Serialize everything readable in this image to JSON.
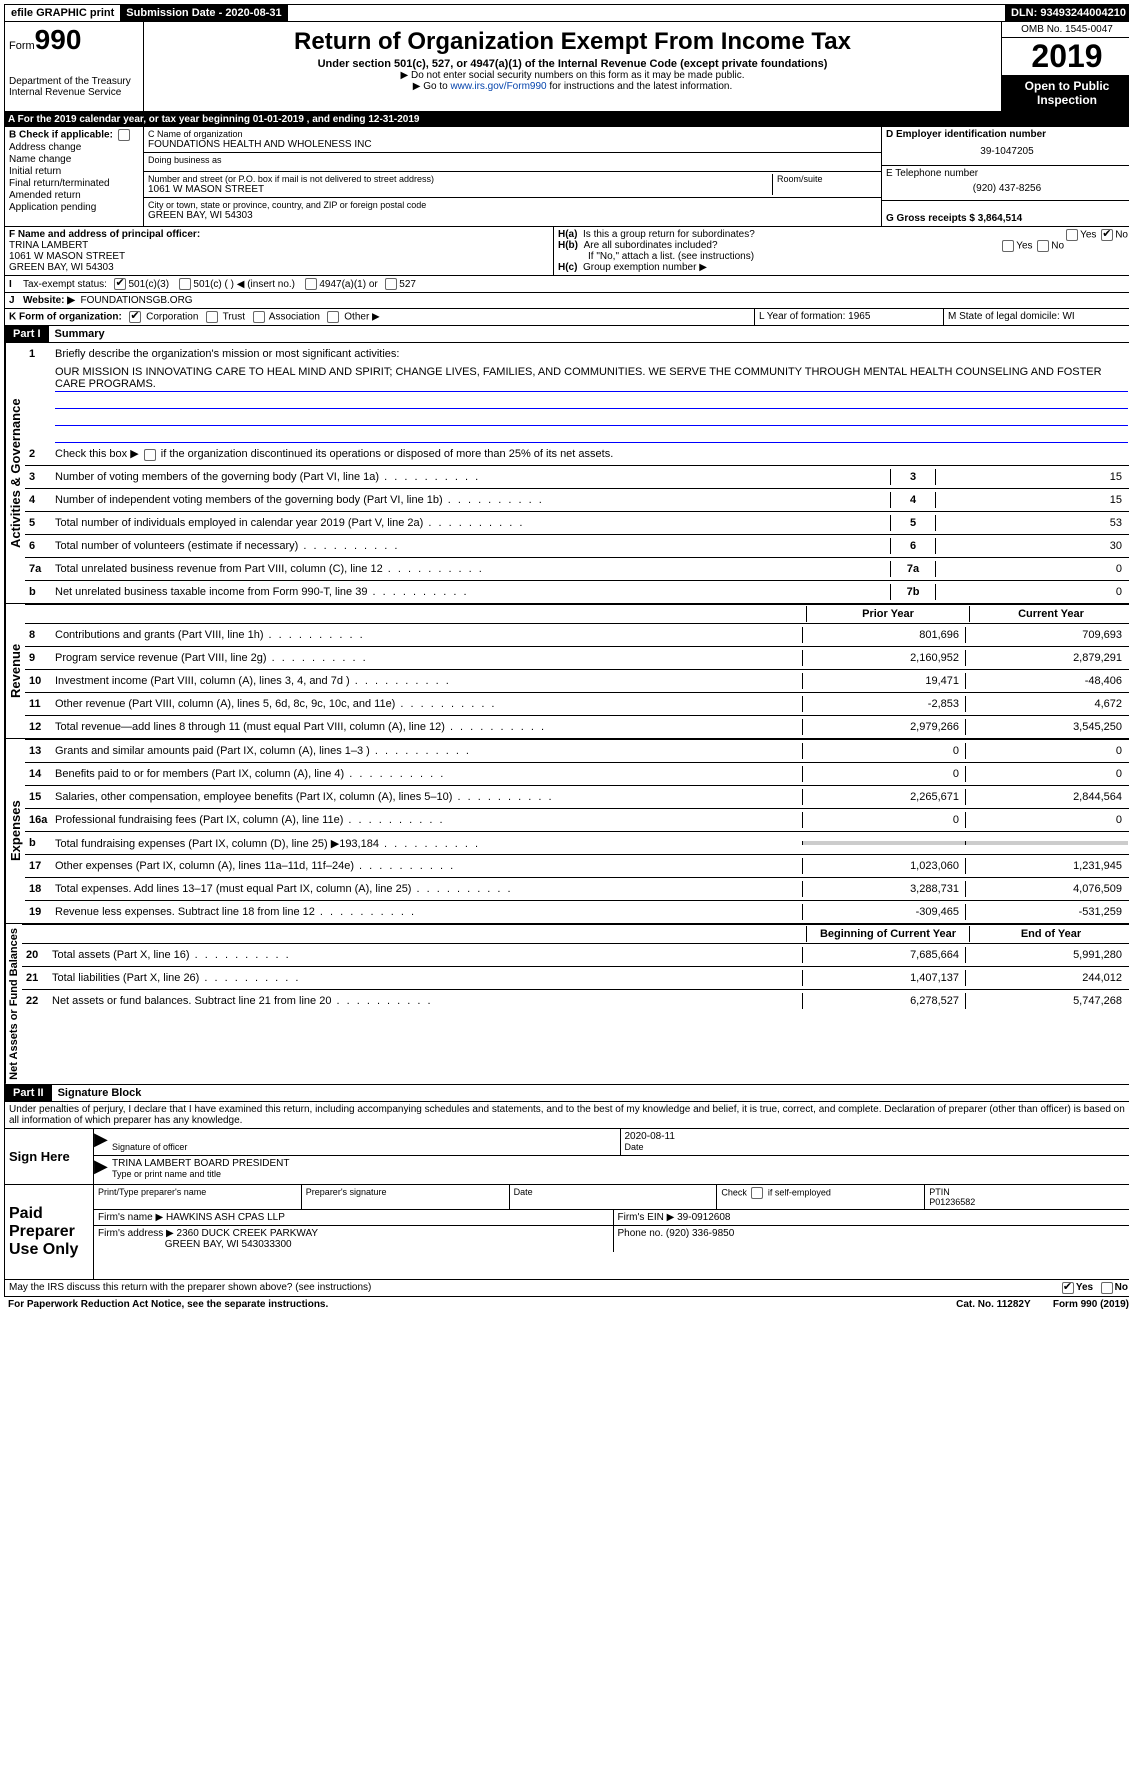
{
  "topbar": {
    "efile": "efile GRAPHIC print",
    "submission": "Submission Date - 2020-08-31",
    "dln": "DLN: 93493244004210"
  },
  "header": {
    "form_word": "Form",
    "form_num": "990",
    "dept1": "Department of the Treasury",
    "dept2": "Internal Revenue Service",
    "title": "Return of Organization Exempt From Income Tax",
    "subtitle": "Under section 501(c), 527, or 4947(a)(1) of the Internal Revenue Code (except private foundations)",
    "note1": "▶ Do not enter social security numbers on this form as it may be made public.",
    "note2_pre": "▶ Go to ",
    "note2_link": "www.irs.gov/Form990",
    "note2_post": " for instructions and the latest information.",
    "omb": "OMB No. 1545-0047",
    "year": "2019",
    "open": "Open to Public Inspection"
  },
  "rowA": "A   For the 2019 calendar year, or tax year beginning 01-01-2019       , and ending 12-31-2019",
  "colB": {
    "title": "B Check if applicable:",
    "items": [
      "Address change",
      "Name change",
      "Initial return",
      "Final return/terminated",
      "Amended return",
      "Application pending"
    ]
  },
  "colC": {
    "name_label": "C Name of organization",
    "name": "FOUNDATIONS HEALTH AND WHOLENESS INC",
    "dba_label": "Doing business as",
    "dba": "",
    "street_label": "Number and street (or P.O. box if mail is not delivered to street address)",
    "street": "1061 W MASON STREET",
    "room_label": "Room/suite",
    "city_label": "City or town, state or province, country, and ZIP or foreign postal code",
    "city": "GREEN BAY, WI  54303"
  },
  "colD": {
    "ein_label": "D Employer identification number",
    "ein": "39-1047205",
    "phone_label": "E Telephone number",
    "phone": "(920) 437-8256",
    "gross_label": "G Gross receipts $ 3,864,514"
  },
  "rowF": {
    "f_label": "F  Name and address of principal officer:",
    "f_name": "TRINA LAMBERT",
    "f_street": "1061 W MASON STREET",
    "f_city": "GREEN BAY, WI  54303",
    "ha_label": "H(a)",
    "ha_text": "Is this a group return for subordinates?",
    "hb_label": "H(b)",
    "hb_text": "Are all subordinates included?",
    "hb_note": "If \"No,\" attach a list. (see instructions)",
    "hc_label": "H(c)",
    "hc_text": "Group exemption number ▶",
    "yes": "Yes",
    "no": "No"
  },
  "rowI": {
    "label": "I",
    "text": "Tax-exempt status:",
    "o1": "501(c)(3)",
    "o2": "501(c) (  ) ◀ (insert no.)",
    "o3": "4947(a)(1) or",
    "o4": "527"
  },
  "rowJ": {
    "label": "J",
    "text": "Website: ▶",
    "val": "FOUNDATIONSGB.ORG"
  },
  "rowK": {
    "label": "K Form of organization:",
    "o1": "Corporation",
    "o2": "Trust",
    "o3": "Association",
    "o4": "Other ▶",
    "l_label": "L Year of formation: 1965",
    "m_label": "M State of legal domicile: WI"
  },
  "part1": {
    "hdr": "Part I",
    "title": "Summary"
  },
  "governance": {
    "label": "Activities & Governance",
    "l1_label": "1",
    "l1_text": "Briefly describe the organization's mission or most significant activities:",
    "mission": "OUR MISSION IS INNOVATING CARE TO HEAL MIND AND SPIRIT; CHANGE LIVES, FAMILIES, AND COMMUNITIES. WE SERVE THE COMMUNITY THROUGH MENTAL HEALTH COUNSELING AND FOSTER CARE PROGRAMS.",
    "l2_label": "2",
    "l2_text": "Check this box ▶       if the organization discontinued its operations or disposed of more than 25% of its net assets.",
    "rows": [
      {
        "n": "3",
        "d": "Number of voting members of the governing body (Part VI, line 1a)",
        "k": "3",
        "v": "15"
      },
      {
        "n": "4",
        "d": "Number of independent voting members of the governing body (Part VI, line 1b)",
        "k": "4",
        "v": "15"
      },
      {
        "n": "5",
        "d": "Total number of individuals employed in calendar year 2019 (Part V, line 2a)",
        "k": "5",
        "v": "53"
      },
      {
        "n": "6",
        "d": "Total number of volunteers (estimate if necessary)",
        "k": "6",
        "v": "30"
      },
      {
        "n": "7a",
        "d": "Total unrelated business revenue from Part VIII, column (C), line 12",
        "k": "7a",
        "v": "0"
      },
      {
        "n": "b",
        "d": "Net unrelated business taxable income from Form 990-T, line 39",
        "k": "7b",
        "v": "0"
      }
    ]
  },
  "revenue": {
    "label": "Revenue",
    "hdr_prior": "Prior Year",
    "hdr_current": "Current Year",
    "rows": [
      {
        "n": "8",
        "d": "Contributions and grants (Part VIII, line 1h)",
        "p": "801,696",
        "c": "709,693"
      },
      {
        "n": "9",
        "d": "Program service revenue (Part VIII, line 2g)",
        "p": "2,160,952",
        "c": "2,879,291"
      },
      {
        "n": "10",
        "d": "Investment income (Part VIII, column (A), lines 3, 4, and 7d )",
        "p": "19,471",
        "c": "-48,406"
      },
      {
        "n": "11",
        "d": "Other revenue (Part VIII, column (A), lines 5, 6d, 8c, 9c, 10c, and 11e)",
        "p": "-2,853",
        "c": "4,672"
      },
      {
        "n": "12",
        "d": "Total revenue—add lines 8 through 11 (must equal Part VIII, column (A), line 12)",
        "p": "2,979,266",
        "c": "3,545,250"
      }
    ]
  },
  "expenses": {
    "label": "Expenses",
    "rows": [
      {
        "n": "13",
        "d": "Grants and similar amounts paid (Part IX, column (A), lines 1–3 )",
        "p": "0",
        "c": "0"
      },
      {
        "n": "14",
        "d": "Benefits paid to or for members (Part IX, column (A), line 4)",
        "p": "0",
        "c": "0"
      },
      {
        "n": "15",
        "d": "Salaries, other compensation, employee benefits (Part IX, column (A), lines 5–10)",
        "p": "2,265,671",
        "c": "2,844,564"
      },
      {
        "n": "16a",
        "d": "Professional fundraising fees (Part IX, column (A), line 11e)",
        "p": "0",
        "c": "0"
      },
      {
        "n": "b",
        "d": "Total fundraising expenses (Part IX, column (D), line 25) ▶193,184",
        "p": "",
        "c": "",
        "gray": true
      },
      {
        "n": "17",
        "d": "Other expenses (Part IX, column (A), lines 11a–11d, 11f–24e)",
        "p": "1,023,060",
        "c": "1,231,945"
      },
      {
        "n": "18",
        "d": "Total expenses. Add lines 13–17 (must equal Part IX, column (A), line 25)",
        "p": "3,288,731",
        "c": "4,076,509"
      },
      {
        "n": "19",
        "d": "Revenue less expenses. Subtract line 18 from line 12",
        "p": "-309,465",
        "c": "-531,259"
      }
    ]
  },
  "netassets": {
    "label": "Net Assets or Fund Balances",
    "hdr_begin": "Beginning of Current Year",
    "hdr_end": "End of Year",
    "rows": [
      {
        "n": "20",
        "d": "Total assets (Part X, line 16)",
        "p": "7,685,664",
        "c": "5,991,280"
      },
      {
        "n": "21",
        "d": "Total liabilities (Part X, line 26)",
        "p": "1,407,137",
        "c": "244,012"
      },
      {
        "n": "22",
        "d": "Net assets or fund balances. Subtract line 21 from line 20",
        "p": "6,278,527",
        "c": "5,747,268"
      }
    ]
  },
  "part2": {
    "hdr": "Part II",
    "title": "Signature Block"
  },
  "perjury": "Under penalties of perjury, I declare that I have examined this return, including accompanying schedules and statements, and to the best of my knowledge and belief, it is true, correct, and complete. Declaration of preparer (other than officer) is based on all information of which preparer has any knowledge.",
  "sign": {
    "here": "Sign Here",
    "sig_officer": "Signature of officer",
    "date_val": "2020-08-11",
    "date": "Date",
    "name": "TRINA LAMBERT  BOARD PRESIDENT",
    "name_label": "Type or print name and title"
  },
  "paid": {
    "label": "Paid Preparer Use Only",
    "col1": "Print/Type preparer's name",
    "col2": "Preparer's signature",
    "col3": "Date",
    "col4a": "Check        if self-employed",
    "col5_label": "PTIN",
    "col5": "P01236582",
    "firm_name_label": "Firm's name    ▶",
    "firm_name": "HAWKINS ASH CPAS LLP",
    "firm_ein_label": "Firm's EIN ▶",
    "firm_ein": "39-0912608",
    "firm_addr_label": "Firm's address ▶",
    "firm_addr1": "2360 DUCK CREEK PARKWAY",
    "firm_addr2": "GREEN BAY, WI  543033300",
    "firm_phone_label": "Phone no. (920) 336-9850"
  },
  "discuss": {
    "text": "May the IRS discuss this return with the preparer shown above? (see instructions)",
    "yes": "Yes",
    "no": "No"
  },
  "footer": {
    "left": "For Paperwork Reduction Act Notice, see the separate instructions.",
    "mid": "Cat. No. 11282Y",
    "right": "Form 990 (2019)"
  }
}
